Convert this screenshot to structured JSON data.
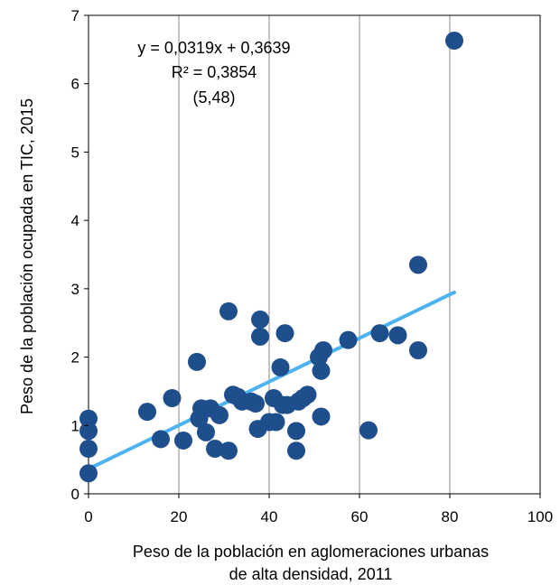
{
  "chart_data": {
    "type": "scatter",
    "title": "",
    "xlabel_lines": [
      "Peso de la población en aglomeraciones urbanas",
      "de alta densidad, 2011"
    ],
    "ylabel": "Peso de la población ocupada en TIC, 2015",
    "xlim": [
      0,
      100
    ],
    "ylim": [
      0,
      7
    ],
    "x_ticks": [
      0,
      20,
      40,
      60,
      80,
      100
    ],
    "y_ticks": [
      0,
      1,
      2,
      3,
      4,
      5,
      6,
      7
    ],
    "grid": true,
    "legend": "none",
    "series": [
      {
        "marker_color": "#1f4e8c",
        "points": [
          {
            "x": 0,
            "y": 1.1
          },
          {
            "x": 0,
            "y": 0.92
          },
          {
            "x": 0,
            "y": 0.66
          },
          {
            "x": 0,
            "y": 0.3
          },
          {
            "x": 13,
            "y": 1.2
          },
          {
            "x": 16,
            "y": 0.8
          },
          {
            "x": 18.5,
            "y": 1.4
          },
          {
            "x": 21,
            "y": 0.78
          },
          {
            "x": 24,
            "y": 1.93
          },
          {
            "x": 24.5,
            "y": 1.1
          },
          {
            "x": 25,
            "y": 1.25
          },
          {
            "x": 26,
            "y": 0.9
          },
          {
            "x": 27,
            "y": 1.25
          },
          {
            "x": 28,
            "y": 0.66
          },
          {
            "x": 29,
            "y": 1.15
          },
          {
            "x": 31,
            "y": 2.67
          },
          {
            "x": 31,
            "y": 0.63
          },
          {
            "x": 32,
            "y": 1.45
          },
          {
            "x": 33,
            "y": 1.42
          },
          {
            "x": 34,
            "y": 1.35
          },
          {
            "x": 36,
            "y": 1.35
          },
          {
            "x": 37,
            "y": 1.32
          },
          {
            "x": 37.5,
            "y": 0.95
          },
          {
            "x": 38,
            "y": 2.55
          },
          {
            "x": 38,
            "y": 2.3
          },
          {
            "x": 40,
            "y": 1.05
          },
          {
            "x": 41,
            "y": 1.4
          },
          {
            "x": 41.5,
            "y": 1.05
          },
          {
            "x": 42.5,
            "y": 1.85
          },
          {
            "x": 43,
            "y": 1.3
          },
          {
            "x": 43.5,
            "y": 2.35
          },
          {
            "x": 44,
            "y": 1.3
          },
          {
            "x": 46,
            "y": 0.92
          },
          {
            "x": 46,
            "y": 0.63
          },
          {
            "x": 46.5,
            "y": 1.35
          },
          {
            "x": 47.5,
            "y": 1.4
          },
          {
            "x": 48.5,
            "y": 1.45
          },
          {
            "x": 51,
            "y": 2.0
          },
          {
            "x": 51.5,
            "y": 1.8
          },
          {
            "x": 51.5,
            "y": 1.13
          },
          {
            "x": 52,
            "y": 2.1
          },
          {
            "x": 57.5,
            "y": 2.25
          },
          {
            "x": 62,
            "y": 0.93
          },
          {
            "x": 64.5,
            "y": 2.35
          },
          {
            "x": 68.5,
            "y": 2.32
          },
          {
            "x": 73,
            "y": 3.35
          },
          {
            "x": 73,
            "y": 2.1
          },
          {
            "x": 81,
            "y": 6.63
          }
        ]
      }
    ],
    "trendline": {
      "slope": 0.0319,
      "intercept": 0.3639,
      "x_range": [
        0,
        81
      ],
      "color": "#4db3f0"
    },
    "annotations": [
      {
        "text": "y = 0,0319x + 0,3639"
      },
      {
        "text": "R² = 0,3854"
      },
      {
        "text": "(5,48)"
      }
    ]
  }
}
